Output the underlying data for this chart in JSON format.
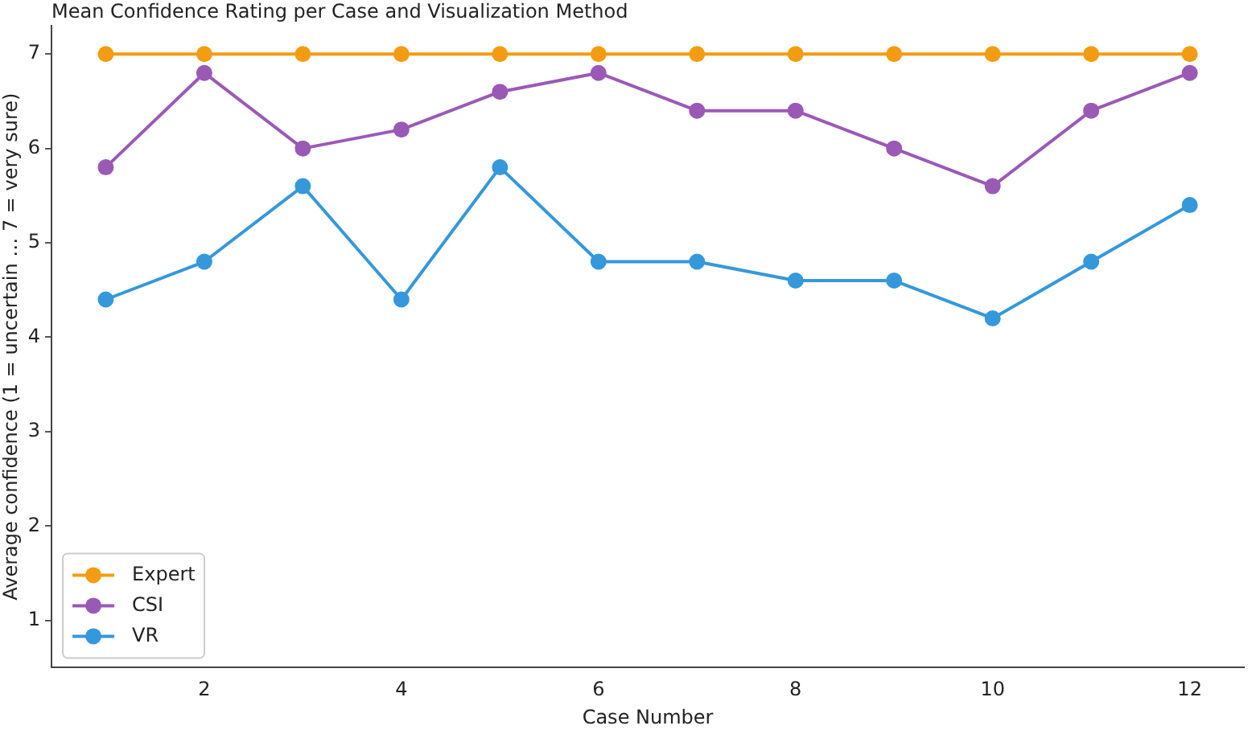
{
  "chart_data": {
    "type": "line",
    "title": "Mean Confidence Rating per Case and Visualization Method",
    "xlabel": "Case Number",
    "ylabel": "Average confidence (1 = uncertain … 7 = very sure)",
    "x": [
      1,
      2,
      3,
      4,
      5,
      6,
      7,
      8,
      9,
      10,
      11,
      12
    ],
    "series": [
      {
        "name": "Expert",
        "color": "#f39c12",
        "values": [
          7,
          7,
          7,
          7,
          7,
          7,
          7,
          7,
          7,
          7,
          7,
          7
        ]
      },
      {
        "name": "CSI",
        "color": "#9b59b6",
        "values": [
          5.8,
          6.8,
          6.0,
          6.2,
          6.6,
          6.8,
          6.4,
          6.4,
          6.0,
          5.6,
          6.4,
          6.8
        ]
      },
      {
        "name": "VR",
        "color": "#3498db",
        "values": [
          4.4,
          4.8,
          5.6,
          4.4,
          5.8,
          4.8,
          4.8,
          4.6,
          4.6,
          4.2,
          4.8,
          5.4
        ]
      }
    ],
    "xlim": [
      0.45,
      12.55
    ],
    "xticks": [
      2,
      4,
      6,
      8,
      10,
      12
    ],
    "ylim": [
      0.5,
      7.3
    ],
    "yticks": [
      1,
      2,
      3,
      4,
      5,
      6,
      7
    ],
    "grid": false,
    "legend": "bottom left",
    "marker": "circle",
    "line_style": "solid"
  }
}
